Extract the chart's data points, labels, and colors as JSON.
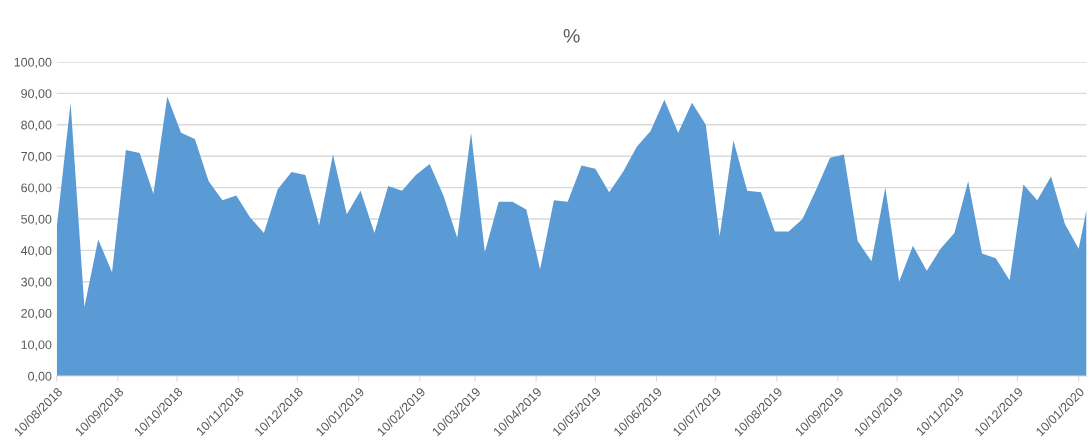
{
  "chart_data": {
    "type": "area",
    "title": "%",
    "color": "#5b9bd5",
    "grid": "y",
    "x": [
      "2018-08-10",
      "2018-08-17",
      "2018-08-24",
      "2018-08-31",
      "2018-09-07",
      "2018-09-14",
      "2018-09-21",
      "2018-09-28",
      "2018-10-05",
      "2018-10-12",
      "2018-10-19",
      "2018-10-26",
      "2018-11-02",
      "2018-11-09",
      "2018-11-16",
      "2018-11-23",
      "2018-11-30",
      "2018-12-07",
      "2018-12-14",
      "2018-12-21",
      "2018-12-28",
      "2019-01-04",
      "2019-01-11",
      "2019-01-18",
      "2019-01-25",
      "2019-02-01",
      "2019-02-08",
      "2019-02-15",
      "2019-02-22",
      "2019-03-01",
      "2019-03-08",
      "2019-03-15",
      "2019-03-22",
      "2019-03-29",
      "2019-04-05",
      "2019-04-12",
      "2019-04-19",
      "2019-04-26",
      "2019-05-03",
      "2019-05-10",
      "2019-05-17",
      "2019-05-24",
      "2019-05-31",
      "2019-06-07",
      "2019-06-14",
      "2019-06-21",
      "2019-06-28",
      "2019-07-05",
      "2019-07-12",
      "2019-07-19",
      "2019-07-26",
      "2019-08-02",
      "2019-08-09",
      "2019-08-16",
      "2019-08-23",
      "2019-08-30",
      "2019-09-06",
      "2019-09-13",
      "2019-09-20",
      "2019-09-27",
      "2019-10-04",
      "2019-10-11",
      "2019-10-18",
      "2019-10-25",
      "2019-11-01",
      "2019-11-08",
      "2019-11-15",
      "2019-11-22",
      "2019-11-29",
      "2019-12-06",
      "2019-12-13",
      "2019-12-20",
      "2019-12-27",
      "2020-01-03",
      "2020-01-10",
      "2020-01-14"
    ],
    "values": [
      47.5,
      87,
      22,
      43.5,
      33,
      72,
      71,
      58,
      89,
      77.5,
      75.5,
      62,
      56,
      57.5,
      50.5,
      45.5,
      59.5,
      65,
      64,
      48,
      70.5,
      51.5,
      59,
      45.5,
      60.5,
      59,
      64,
      67.5,
      57.5,
      44,
      77.5,
      39.5,
      55.5,
      55.5,
      53,
      34,
      56,
      55.5,
      67,
      66,
      58.5,
      65,
      73,
      78,
      88,
      77.5,
      87,
      80,
      44.5,
      75,
      59,
      58.5,
      46,
      46,
      50,
      59.5,
      69.5,
      70.5,
      43,
      36.5,
      60,
      30,
      41.5,
      33.5,
      40.5,
      45.5,
      62,
      39,
      37.5,
      30.5,
      61,
      56,
      63.5,
      48.5,
      40.5,
      53
    ],
    "xlim": [
      "2018-08-10",
      "2020-01-14"
    ],
    "xticks": [
      {
        "value": "2018-08-10",
        "label": "10/08/2018"
      },
      {
        "value": "2018-09-10",
        "label": "10/09/2018"
      },
      {
        "value": "2018-10-10",
        "label": "10/10/2018"
      },
      {
        "value": "2018-11-10",
        "label": "10/11/2018"
      },
      {
        "value": "2018-12-10",
        "label": "10/12/2018"
      },
      {
        "value": "2019-01-10",
        "label": "10/01/2019"
      },
      {
        "value": "2019-02-10",
        "label": "10/02/2019"
      },
      {
        "value": "2019-03-10",
        "label": "10/03/2019"
      },
      {
        "value": "2019-04-10",
        "label": "10/04/2019"
      },
      {
        "value": "2019-05-10",
        "label": "10/05/2019"
      },
      {
        "value": "2019-06-10",
        "label": "10/06/2019"
      },
      {
        "value": "2019-07-10",
        "label": "10/07/2019"
      },
      {
        "value": "2019-08-10",
        "label": "10/08/2019"
      },
      {
        "value": "2019-09-10",
        "label": "10/09/2019"
      },
      {
        "value": "2019-10-10",
        "label": "10/10/2019"
      },
      {
        "value": "2019-11-10",
        "label": "10/11/2019"
      },
      {
        "value": "2019-12-10",
        "label": "10/12/2019"
      },
      {
        "value": "2020-01-10",
        "label": "10/01/2020"
      }
    ],
    "ylim": [
      0,
      100
    ],
    "yticks": [
      {
        "value": 0,
        "label": "0,00"
      },
      {
        "value": 10,
        "label": "10,00"
      },
      {
        "value": 20,
        "label": "20,00"
      },
      {
        "value": 30,
        "label": "30,00"
      },
      {
        "value": 40,
        "label": "40,00"
      },
      {
        "value": 50,
        "label": "50,00"
      },
      {
        "value": 60,
        "label": "60,00"
      },
      {
        "value": 70,
        "label": "70,00"
      },
      {
        "value": 80,
        "label": "80,00"
      },
      {
        "value": 90,
        "label": "90,00"
      },
      {
        "value": 100,
        "label": "100,00"
      }
    ]
  }
}
